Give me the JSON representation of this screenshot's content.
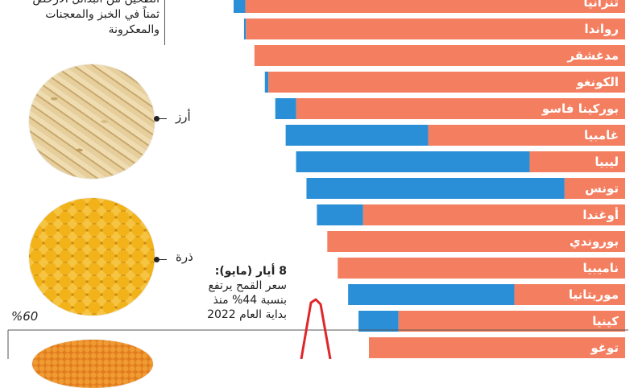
{
  "intro": {
    "lines": [
      "الطحين من البدائل الأرخص",
      "ثمناً في الخبز والمعجنات",
      "والمعكرونة"
    ]
  },
  "grains": [
    {
      "label": "أرز",
      "kind": "rice-photo"
    },
    {
      "label": "ذرة",
      "kind": "corn-photo"
    },
    {
      "kind": "lentil-photo"
    }
  ],
  "annotation": {
    "date": "8 أيار (مايو):",
    "body": [
      "سعر القمح يرتفع",
      "بنسبة 44% منذ",
      "بداية العام 2022"
    ]
  },
  "price_axis_label": "%60",
  "colors": {
    "import_share": "#2a8fd6",
    "remainder": "#f47e60",
    "trend_line": "#e0262b"
  },
  "chart_data": {
    "type": "bar",
    "orientation": "horizontal",
    "stacked": true,
    "categories": [
      "تنزانيا",
      "رواندا",
      "مدغشقر",
      "الكونغو",
      "بوركينا فاسو",
      "غامبيا",
      "ليبيا",
      "تونس",
      "أوغندا",
      "بوروندي",
      "ناميبيا",
      "موريتانيا",
      "كينيا",
      "توغو"
    ],
    "series": [
      {
        "values": [
          3,
          0.5,
          0,
          1,
          6,
          42,
          71,
          81,
          15,
          0,
          0,
          60,
          15,
          0
        ]
      },
      {
        "values": [
          97,
          99.5,
          100,
          99,
          94,
          58,
          29,
          19,
          85,
          100,
          100,
          40,
          85,
          100
        ]
      }
    ],
    "xlim": [
      0,
      100
    ]
  }
}
